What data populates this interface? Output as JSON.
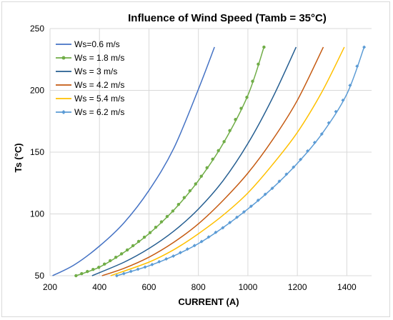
{
  "chart_data": {
    "type": "line",
    "title": "Influence of Wind Speed (Tamb = 35°C)",
    "xlabel": "CURRENT (A)",
    "ylabel": "Ts (°C)",
    "xlim": [
      200,
      1500
    ],
    "ylim": [
      50,
      250
    ],
    "xticks": [
      200,
      400,
      600,
      800,
      1000,
      1200,
      1400
    ],
    "yticks": [
      50,
      100,
      150,
      200,
      250
    ],
    "grid": true,
    "legend_position": "top-left",
    "series": [
      {
        "name": "Ws=0.6 m/s",
        "color": "#4472c4",
        "marker": "none",
        "x": [
          210,
          300,
          400,
          500,
          600,
          700,
          800,
          865
        ],
        "y": [
          50,
          59,
          74,
          93,
          119,
          153,
          201,
          235
        ]
      },
      {
        "name": "Ws = 1.8 m/s",
        "color": "#70ad47",
        "marker": "circle",
        "x": [
          305,
          400,
          500,
          600,
          700,
          800,
          900,
          1000,
          1065
        ],
        "y": [
          50,
          57,
          69,
          84,
          103,
          127,
          157,
          196,
          235
        ]
      },
      {
        "name": "Ws = 3 m/s",
        "color": "#255e91",
        "marker": "none",
        "x": [
          370,
          500,
          600,
          700,
          800,
          900,
          1000,
          1100,
          1195
        ],
        "y": [
          50,
          61,
          72,
          86,
          104,
          127,
          157,
          194,
          235
        ]
      },
      {
        "name": "Ws = 4.2 m/s",
        "color": "#c55a11",
        "marker": "none",
        "x": [
          410,
          500,
          600,
          700,
          800,
          900,
          1000,
          1100,
          1200,
          1305
        ],
        "y": [
          50,
          56,
          65,
          77,
          92,
          111,
          133,
          160,
          192,
          235
        ]
      },
      {
        "name": "Ws = 5.4 m/s",
        "color": "#ffc000",
        "marker": "none",
        "x": [
          445,
          600,
          700,
          800,
          900,
          1000,
          1100,
          1200,
          1300,
          1390
        ],
        "y": [
          50,
          61,
          71,
          84,
          99,
          117,
          140,
          166,
          199,
          235
        ]
      },
      {
        "name": "Ws = 6.2 m/s",
        "color": "#5b9bd5",
        "marker": "diamond",
        "x": [
          470,
          600,
          700,
          800,
          900,
          1000,
          1100,
          1200,
          1300,
          1400,
          1470
        ],
        "y": [
          50,
          58,
          66,
          76,
          89,
          104,
          121,
          141,
          165,
          197,
          235
        ]
      }
    ]
  }
}
